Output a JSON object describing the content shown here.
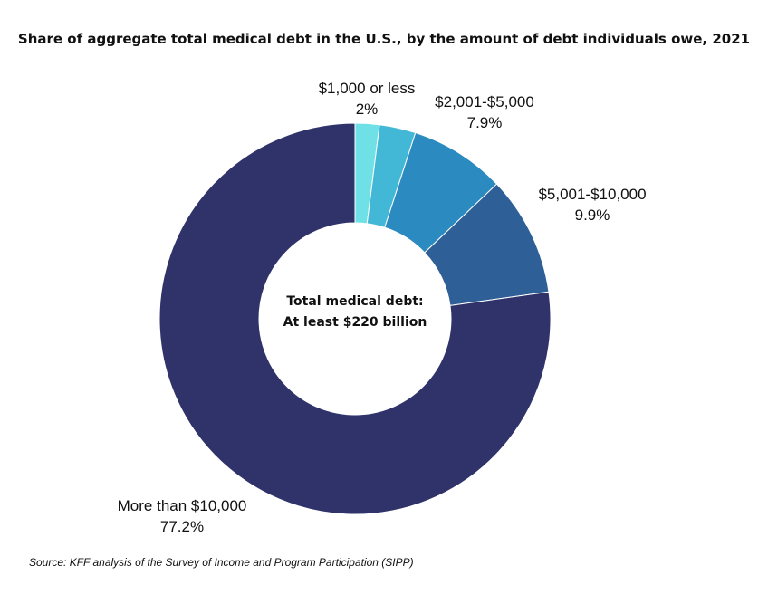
{
  "chart_data": {
    "type": "pie",
    "title": "Share of aggregate total medical debt in the U.S., by the amount of debt individuals owe, 2021",
    "center_text": [
      "Total medical debt:",
      "At least $220 billion"
    ],
    "slices": [
      {
        "label": "$1,000 or less",
        "value": 2.0,
        "value_label": "2%",
        "color": "#6FE0E6"
      },
      {
        "label": "",
        "value": 3.0,
        "value_label": "",
        "color": "#43B7D6"
      },
      {
        "label": "$2,001-$5,000",
        "value": 7.9,
        "value_label": "7.9%",
        "color": "#2B8ABF"
      },
      {
        "label": "$5,001-$10,000",
        "value": 9.9,
        "value_label": "9.9%",
        "color": "#2E5F97"
      },
      {
        "label": "More than $10,000",
        "value": 77.2,
        "value_label": "77.2%",
        "color": "#2F336A"
      }
    ],
    "source": "Source: KFF analysis of the Survey of Income and Program Participation (SIPP)"
  }
}
